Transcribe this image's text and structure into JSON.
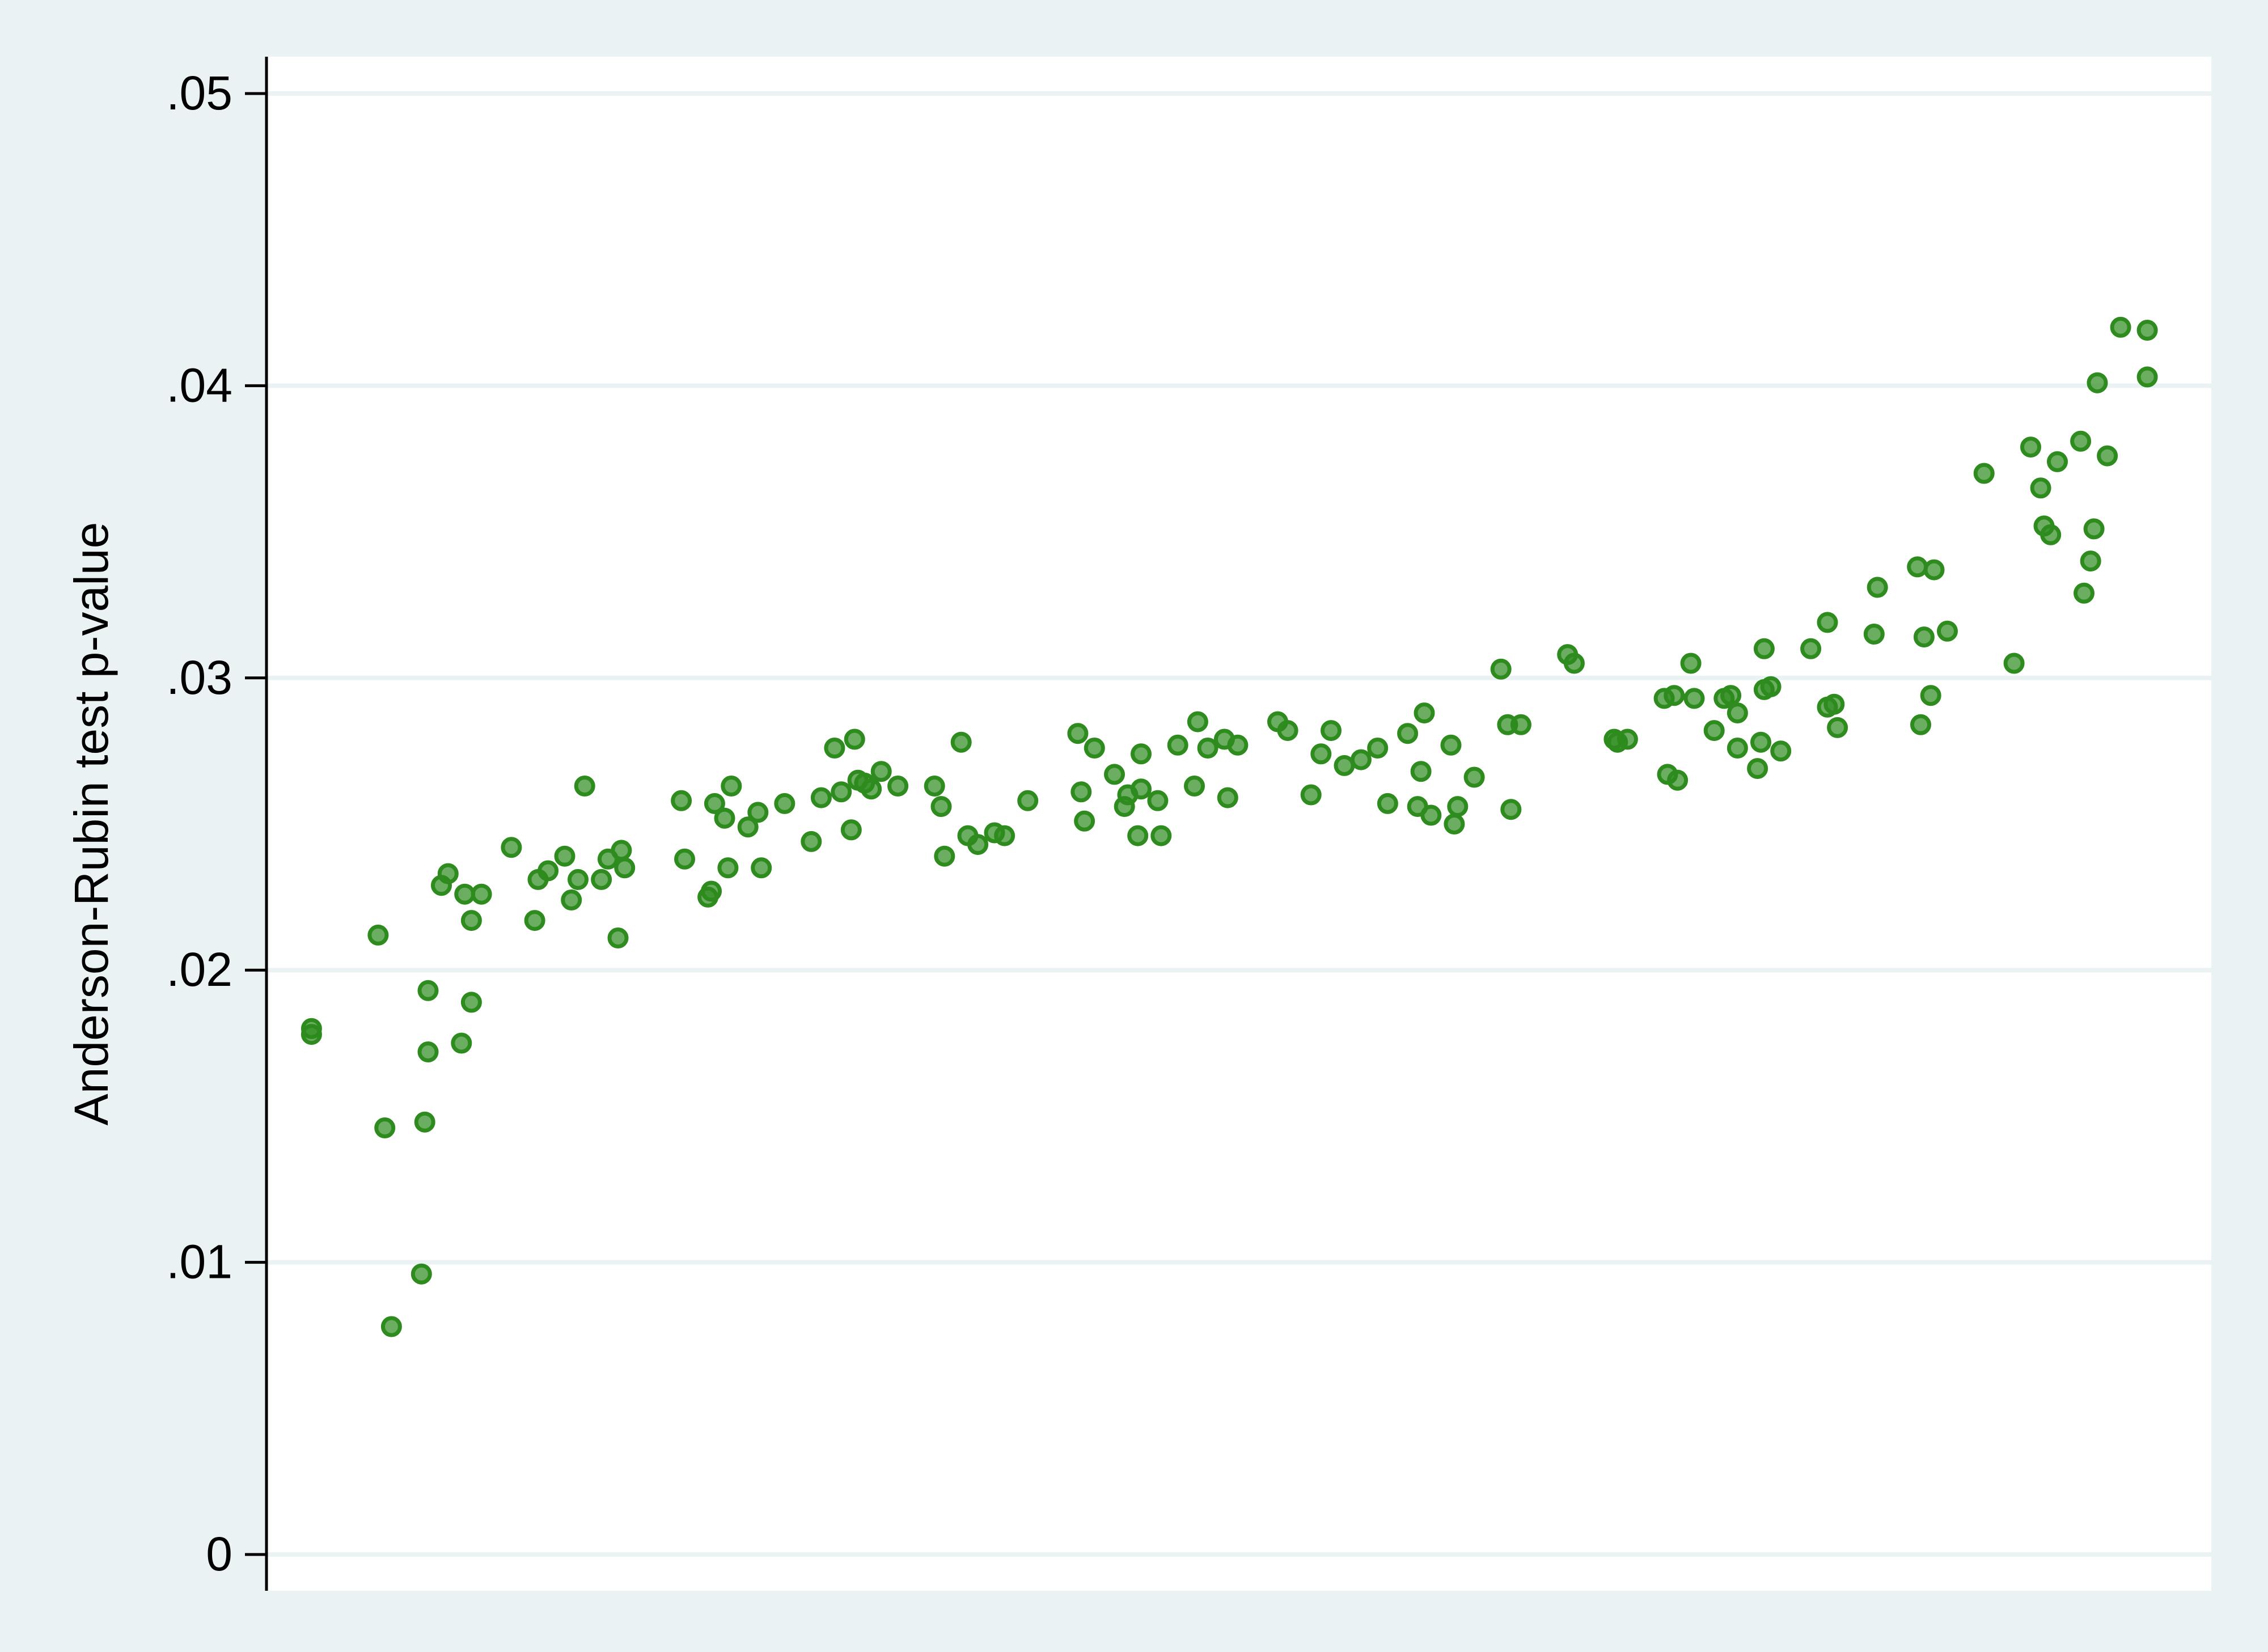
{
  "chart_data": {
    "type": "scatter",
    "title": "",
    "xlabel": "",
    "ylabel": "Anderson-Rubin test p-value",
    "ylim": [
      0,
      0.05
    ],
    "y_ticks": [
      0,
      0.01,
      0.02,
      0.03,
      0.04,
      0.05
    ],
    "y_tick_labels": [
      "0",
      ".01",
      ".02",
      ".03",
      ".04",
      ".05"
    ],
    "x_axis_shown": false,
    "grid": "horizontal",
    "background_color": "#eaf2f3",
    "plot_background": "#ffffff",
    "grid_color": "#eaf2f3",
    "marker_color": "#2e8b1e",
    "series": [
      {
        "points": [
          [
            0.5,
            0.018
          ],
          [
            0.5,
            0.0178
          ],
          [
            2.5,
            0.0212
          ],
          [
            2.7,
            0.0146
          ],
          [
            2.9,
            0.0078
          ],
          [
            3.8,
            0.0096
          ],
          [
            3.9,
            0.0148
          ],
          [
            4.0,
            0.0172
          ],
          [
            4.0,
            0.0193
          ],
          [
            4.4,
            0.0229
          ],
          [
            4.6,
            0.0233
          ],
          [
            5.0,
            0.0175
          ],
          [
            5.1,
            0.0226
          ],
          [
            5.3,
            0.0217
          ],
          [
            5.3,
            0.0189
          ],
          [
            5.6,
            0.0226
          ],
          [
            6.5,
            0.0242
          ],
          [
            7.2,
            0.0217
          ],
          [
            7.3,
            0.0231
          ],
          [
            7.6,
            0.0234
          ],
          [
            8.1,
            0.0239
          ],
          [
            8.3,
            0.0224
          ],
          [
            8.5,
            0.0231
          ],
          [
            8.7,
            0.0263
          ],
          [
            9.2,
            0.0231
          ],
          [
            9.4,
            0.0238
          ],
          [
            9.7,
            0.0211
          ],
          [
            9.8,
            0.0241
          ],
          [
            9.9,
            0.0235
          ],
          [
            11.6,
            0.0258
          ],
          [
            11.7,
            0.0238
          ],
          [
            12.4,
            0.0225
          ],
          [
            12.5,
            0.0227
          ],
          [
            12.6,
            0.0257
          ],
          [
            12.9,
            0.0252
          ],
          [
            13.0,
            0.0235
          ],
          [
            13.1,
            0.0263
          ],
          [
            13.6,
            0.0249
          ],
          [
            13.9,
            0.0254
          ],
          [
            14.0,
            0.0235
          ],
          [
            14.7,
            0.0257
          ],
          [
            15.5,
            0.0244
          ],
          [
            15.8,
            0.0259
          ],
          [
            16.2,
            0.0276
          ],
          [
            16.4,
            0.0261
          ],
          [
            16.7,
            0.0248
          ],
          [
            16.8,
            0.0279
          ],
          [
            16.9,
            0.0265
          ],
          [
            17.1,
            0.0264
          ],
          [
            17.3,
            0.0262
          ],
          [
            17.6,
            0.0268
          ],
          [
            18.1,
            0.0263
          ],
          [
            19.2,
            0.0263
          ],
          [
            19.4,
            0.0256
          ],
          [
            19.5,
            0.0239
          ],
          [
            20.0,
            0.0278
          ],
          [
            20.2,
            0.0246
          ],
          [
            20.5,
            0.0243
          ],
          [
            21.0,
            0.0247
          ],
          [
            21.3,
            0.0246
          ],
          [
            22.0,
            0.0258
          ],
          [
            23.5,
            0.0281
          ],
          [
            23.6,
            0.0261
          ],
          [
            23.7,
            0.0251
          ],
          [
            24.0,
            0.0276
          ],
          [
            24.6,
            0.0267
          ],
          [
            24.9,
            0.0256
          ],
          [
            25.0,
            0.026
          ],
          [
            25.3,
            0.0246
          ],
          [
            25.4,
            0.0262
          ],
          [
            25.4,
            0.0274
          ],
          [
            25.9,
            0.0258
          ],
          [
            26.0,
            0.0246
          ],
          [
            26.5,
            0.0277
          ],
          [
            27.0,
            0.0263
          ],
          [
            27.1,
            0.0285
          ],
          [
            27.4,
            0.0276
          ],
          [
            27.9,
            0.0279
          ],
          [
            28.0,
            0.0259
          ],
          [
            28.3,
            0.0277
          ],
          [
            29.5,
            0.0285
          ],
          [
            29.8,
            0.0282
          ],
          [
            30.5,
            0.026
          ],
          [
            30.8,
            0.0274
          ],
          [
            31.1,
            0.0282
          ],
          [
            31.5,
            0.027
          ],
          [
            32.0,
            0.0272
          ],
          [
            32.5,
            0.0276
          ],
          [
            32.8,
            0.0257
          ],
          [
            33.4,
            0.0281
          ],
          [
            33.7,
            0.0256
          ],
          [
            33.8,
            0.0268
          ],
          [
            33.9,
            0.0288
          ],
          [
            34.1,
            0.0253
          ],
          [
            34.7,
            0.0277
          ],
          [
            34.8,
            0.025
          ],
          [
            34.9,
            0.0256
          ],
          [
            35.4,
            0.0266
          ],
          [
            36.2,
            0.0303
          ],
          [
            36.4,
            0.0284
          ],
          [
            36.5,
            0.0255
          ],
          [
            36.8,
            0.0284
          ],
          [
            38.2,
            0.0308
          ],
          [
            38.4,
            0.0305
          ],
          [
            39.6,
            0.0279
          ],
          [
            39.7,
            0.0278
          ],
          [
            40.0,
            0.0279
          ],
          [
            41.1,
            0.0293
          ],
          [
            41.2,
            0.0267
          ],
          [
            41.4,
            0.0294
          ],
          [
            41.5,
            0.0265
          ],
          [
            41.9,
            0.0305
          ],
          [
            42.0,
            0.0293
          ],
          [
            42.6,
            0.0282
          ],
          [
            42.9,
            0.0293
          ],
          [
            43.1,
            0.0294
          ],
          [
            43.3,
            0.0288
          ],
          [
            43.3,
            0.0276
          ],
          [
            43.9,
            0.0269
          ],
          [
            44.0,
            0.0278
          ],
          [
            44.1,
            0.031
          ],
          [
            44.1,
            0.0296
          ],
          [
            44.3,
            0.0297
          ],
          [
            44.6,
            0.0275
          ],
          [
            45.5,
            0.031
          ],
          [
            46.0,
            0.0319
          ],
          [
            46.0,
            0.029
          ],
          [
            46.2,
            0.0291
          ],
          [
            46.3,
            0.0283
          ],
          [
            47.4,
            0.0315
          ],
          [
            47.5,
            0.0331
          ],
          [
            48.7,
            0.0338
          ],
          [
            48.8,
            0.0284
          ],
          [
            48.9,
            0.0314
          ],
          [
            49.1,
            0.0294
          ],
          [
            49.2,
            0.0337
          ],
          [
            49.6,
            0.0316
          ],
          [
            50.7,
            0.037
          ],
          [
            51.6,
            0.0305
          ],
          [
            52.1,
            0.0379
          ],
          [
            52.4,
            0.0365
          ],
          [
            52.5,
            0.0352
          ],
          [
            52.7,
            0.0349
          ],
          [
            52.9,
            0.0374
          ],
          [
            53.6,
            0.0381
          ],
          [
            53.7,
            0.0329
          ],
          [
            53.9,
            0.034
          ],
          [
            54.0,
            0.0351
          ],
          [
            54.1,
            0.0401
          ],
          [
            54.4,
            0.0376
          ],
          [
            54.8,
            0.042
          ],
          [
            55.6,
            0.0419
          ],
          [
            55.6,
            0.0403
          ]
        ]
      }
    ]
  }
}
